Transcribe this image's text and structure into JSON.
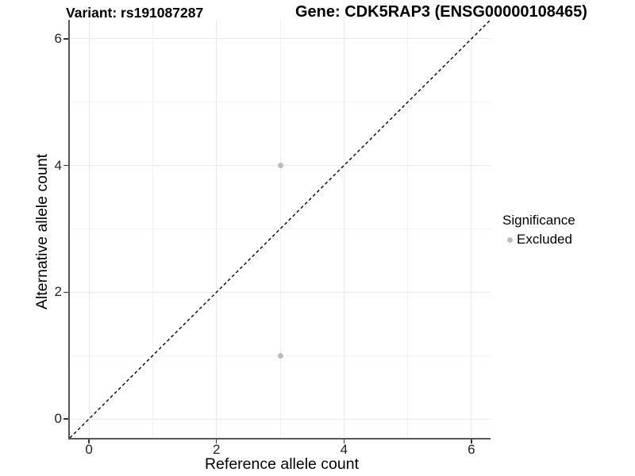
{
  "chart_data": {
    "type": "scatter",
    "title_left": "Variant: rs191087287",
    "title_right": "Gene: CDK5RAP3 (ENSG00000108465)",
    "xlabel": "Reference allele count",
    "ylabel": "Alternative allele count",
    "xlim": [
      -0.3,
      6.3
    ],
    "ylim": [
      -0.3,
      6.3
    ],
    "xticks": [
      0,
      2,
      4,
      6
    ],
    "yticks": [
      0,
      2,
      4,
      6
    ],
    "minor_gridlines_x": [
      1,
      3,
      5
    ],
    "minor_gridlines_y": [
      1,
      3,
      5
    ],
    "grid": true,
    "legend": {
      "title": "Significance",
      "position": "right",
      "entries": [
        {
          "label": "Excluded",
          "color": "#bdbdbd"
        }
      ]
    },
    "series": [
      {
        "name": "Excluded",
        "color": "#bdbdbd",
        "marker": "circle",
        "points": [
          {
            "x": 3,
            "y": 4
          },
          {
            "x": 3,
            "y": 1
          }
        ]
      }
    ],
    "reference_line": {
      "type": "identity",
      "equation": "y = x",
      "style": "dashed",
      "color": "#000000"
    }
  },
  "colors": {
    "background": "#ffffff",
    "axis_line": "#575757",
    "tick_mark": "#333333",
    "grid_major": "#e9e9e9",
    "grid_minor": "#f1f1f1",
    "point": "#bdbdbd",
    "title_text": "#000000",
    "tick_text": "#1f1f1f"
  }
}
